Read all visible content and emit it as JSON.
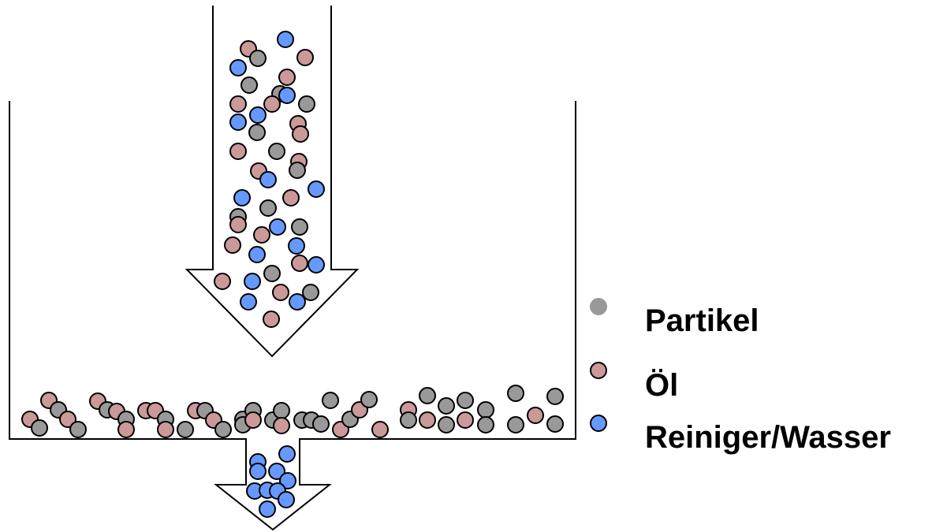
{
  "legend": {
    "items": [
      {
        "label": "Partikel",
        "color": "#999999",
        "icon": "gray-circle-icon"
      },
      {
        "label": "Öl",
        "color": "#cc9999",
        "icon": "pink-circle-icon"
      },
      {
        "label": "Reiniger/Wasser",
        "color": "#6699ff",
        "icon": "blue-circle-icon"
      }
    ]
  },
  "particle_colors": {
    "partikel": "#999999",
    "oel": "#cc9999",
    "wasser": "#6699ff"
  }
}
